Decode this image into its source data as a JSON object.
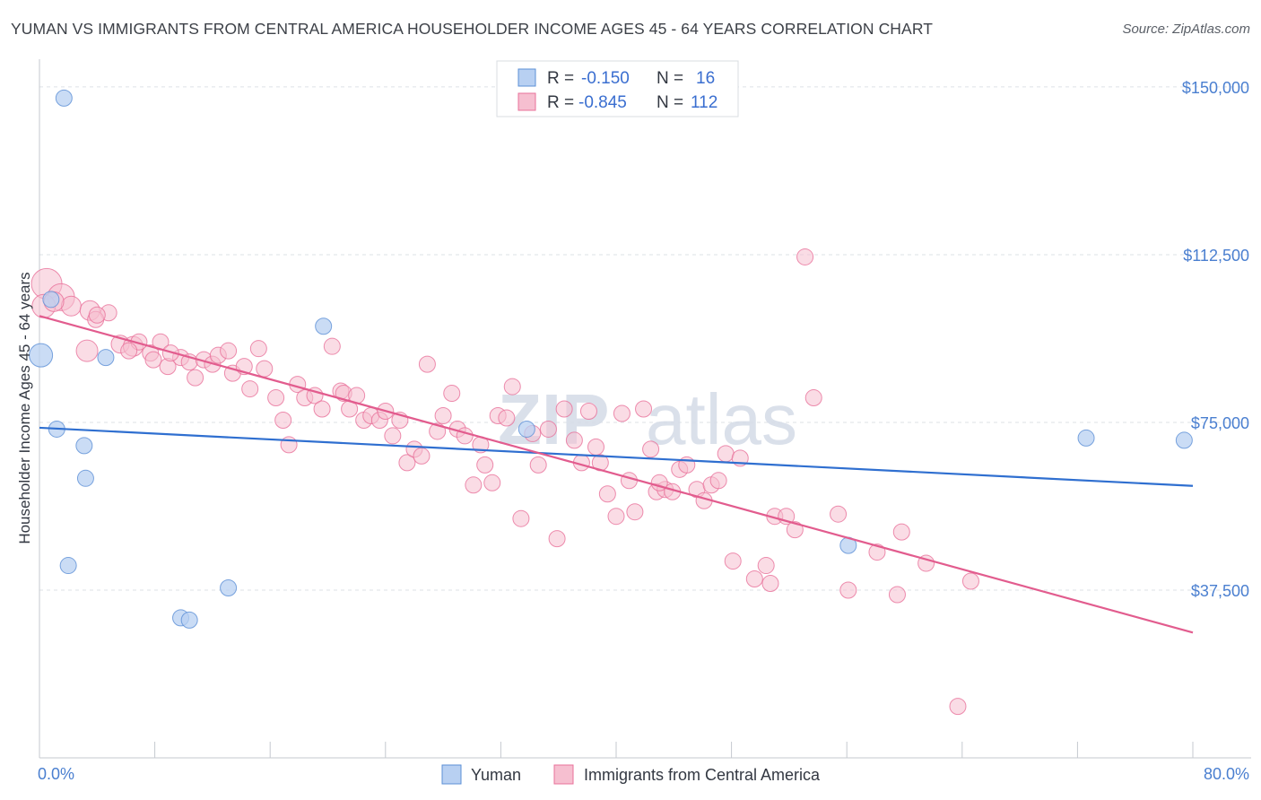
{
  "title": "YUMAN VS IMMIGRANTS FROM CENTRAL AMERICA HOUSEHOLDER INCOME AGES 45 - 64 YEARS CORRELATION CHART",
  "source": "Source: ZipAtlas.com",
  "watermark": {
    "zip": "ZIP",
    "atlas": "atlas"
  },
  "colors": {
    "blue": "#5b8fd6",
    "blue_fill": "#b8d0f2",
    "pink": "#e8709a",
    "pink_fill": "#f6bfd0",
    "axis_label": "#4a7fd0"
  },
  "legend": {
    "r_label": "R =",
    "n_label": "N =",
    "items": [
      {
        "r": "-0.150",
        "n": "16"
      },
      {
        "r": "-0.845",
        "n": "112"
      }
    ]
  },
  "bottom_legend": [
    "Yuman",
    "Immigrants from Central America"
  ],
  "chart_data": {
    "type": "scatter",
    "title": "YUMAN VS IMMIGRANTS FROM CENTRAL AMERICA HOUSEHOLDER INCOME AGES 45 - 64 YEARS CORRELATION CHART",
    "xlabel": "",
    "ylabel": "Householder Income Ages 45 - 64 years",
    "xlim": [
      0,
      80
    ],
    "ylim": [
      0,
      155000
    ],
    "x_tick_labels": [
      "0.0%",
      "80.0%"
    ],
    "y_tick_labels": [
      "$37,500",
      "$75,000",
      "$112,500",
      "$150,000"
    ],
    "y_ticks": [
      37500,
      75000,
      112500,
      150000
    ],
    "grid": true,
    "legend_position": "top-center",
    "series": [
      {
        "name": "Yuman",
        "color": "#5b8fd6",
        "trend": {
          "x": [
            0,
            80
          ],
          "y": [
            73800,
            60800
          ]
        },
        "points": [
          [
            1.7,
            147500,
            9
          ],
          [
            0.8,
            102500,
            9
          ],
          [
            0.1,
            90000,
            13
          ],
          [
            4.6,
            89500,
            9
          ],
          [
            19.7,
            96500,
            9
          ],
          [
            1.2,
            73500,
            9
          ],
          [
            3.1,
            69800,
            9
          ],
          [
            3.2,
            62500,
            9
          ],
          [
            2.0,
            43000,
            9
          ],
          [
            13.1,
            38000,
            9
          ],
          [
            9.8,
            31300,
            9
          ],
          [
            10.4,
            30800,
            9
          ],
          [
            33.8,
            73500,
            9
          ],
          [
            56.1,
            47500,
            9
          ],
          [
            72.6,
            71500,
            9
          ],
          [
            79.4,
            71000,
            9
          ]
        ]
      },
      {
        "name": "Immigrants from Central America",
        "color": "#e8709a",
        "trend": {
          "x": [
            0,
            80
          ],
          "y": [
            98800,
            28000
          ]
        },
        "points": [
          [
            0.5,
            106000,
            17
          ],
          [
            1.5,
            103000,
            15
          ],
          [
            0.3,
            101000,
            13
          ],
          [
            2.2,
            101000,
            11
          ],
          [
            1.0,
            102000,
            11
          ],
          [
            3.5,
            100000,
            11
          ],
          [
            4.8,
            99500,
            9
          ],
          [
            3.9,
            98000,
            9
          ],
          [
            4.0,
            99000,
            9
          ],
          [
            3.3,
            91000,
            12
          ],
          [
            5.6,
            92500,
            10
          ],
          [
            6.5,
            92000,
            11
          ],
          [
            6.9,
            93000,
            9
          ],
          [
            6.2,
            91000,
            9
          ],
          [
            7.7,
            90500,
            9
          ],
          [
            8.4,
            93000,
            9
          ],
          [
            7.9,
            89000,
            9
          ],
          [
            8.9,
            87500,
            9
          ],
          [
            9.8,
            89500,
            9
          ],
          [
            9.1,
            90500,
            9
          ],
          [
            10.4,
            88500,
            9
          ],
          [
            10.8,
            85000,
            9
          ],
          [
            11.4,
            89000,
            9
          ],
          [
            12.0,
            88000,
            9
          ],
          [
            12.4,
            90000,
            9
          ],
          [
            13.1,
            91000,
            9
          ],
          [
            13.4,
            86000,
            9
          ],
          [
            14.2,
            87500,
            9
          ],
          [
            14.6,
            82500,
            9
          ],
          [
            15.2,
            91500,
            9
          ],
          [
            15.6,
            87000,
            9
          ],
          [
            16.4,
            80500,
            9
          ],
          [
            16.9,
            75500,
            9
          ],
          [
            17.3,
            70000,
            9
          ],
          [
            17.9,
            83500,
            9
          ],
          [
            18.4,
            80500,
            9
          ],
          [
            19.1,
            81000,
            9
          ],
          [
            19.6,
            78000,
            9
          ],
          [
            20.3,
            92000,
            9
          ],
          [
            20.9,
            82000,
            9
          ],
          [
            21.5,
            78000,
            9
          ],
          [
            21.1,
            81500,
            9
          ],
          [
            22.0,
            81000,
            9
          ],
          [
            22.5,
            75500,
            9
          ],
          [
            23.0,
            76500,
            9
          ],
          [
            23.6,
            75500,
            9
          ],
          [
            24.0,
            77500,
            9
          ],
          [
            24.5,
            72000,
            9
          ],
          [
            25.0,
            75500,
            9
          ],
          [
            25.5,
            66000,
            9
          ],
          [
            26.0,
            69000,
            9
          ],
          [
            26.5,
            67500,
            9
          ],
          [
            26.9,
            88000,
            9
          ],
          [
            27.6,
            73000,
            9
          ],
          [
            28.0,
            76500,
            9
          ],
          [
            28.6,
            81500,
            9
          ],
          [
            29.0,
            73500,
            9
          ],
          [
            29.5,
            72000,
            9
          ],
          [
            30.1,
            61000,
            9
          ],
          [
            30.6,
            70000,
            9
          ],
          [
            30.9,
            65500,
            9
          ],
          [
            31.4,
            61500,
            9
          ],
          [
            31.8,
            76500,
            9
          ],
          [
            32.4,
            76000,
            9
          ],
          [
            32.8,
            83000,
            9
          ],
          [
            33.4,
            53500,
            9
          ],
          [
            34.2,
            72500,
            9
          ],
          [
            34.6,
            65500,
            9
          ],
          [
            35.3,
            73500,
            9
          ],
          [
            35.9,
            49000,
            9
          ],
          [
            36.4,
            78000,
            9
          ],
          [
            37.1,
            71000,
            9
          ],
          [
            37.6,
            66000,
            9
          ],
          [
            38.1,
            77500,
            9
          ],
          [
            38.6,
            69500,
            9
          ],
          [
            38.9,
            66000,
            9
          ],
          [
            39.4,
            59000,
            9
          ],
          [
            40.0,
            54000,
            9
          ],
          [
            40.4,
            77000,
            9
          ],
          [
            40.9,
            62000,
            9
          ],
          [
            41.3,
            55000,
            9
          ],
          [
            41.9,
            78000,
            9
          ],
          [
            42.4,
            69000,
            9
          ],
          [
            42.8,
            59500,
            9
          ],
          [
            43.4,
            60000,
            9
          ],
          [
            43.9,
            59500,
            9
          ],
          [
            44.4,
            64500,
            9
          ],
          [
            44.9,
            65500,
            9
          ],
          [
            45.6,
            60000,
            9
          ],
          [
            46.1,
            57500,
            9
          ],
          [
            46.6,
            61000,
            9
          ],
          [
            47.1,
            62000,
            9
          ],
          [
            47.6,
            68000,
            9
          ],
          [
            48.1,
            44000,
            9
          ],
          [
            48.6,
            67000,
            9
          ],
          [
            49.6,
            40000,
            9
          ],
          [
            50.4,
            43000,
            9
          ],
          [
            50.7,
            39000,
            9
          ],
          [
            51.0,
            54000,
            9
          ],
          [
            51.8,
            54000,
            9
          ],
          [
            52.4,
            51000,
            9
          ],
          [
            53.7,
            80500,
            9
          ],
          [
            53.1,
            112000,
            9
          ],
          [
            55.4,
            54500,
            9
          ],
          [
            56.1,
            37500,
            9
          ],
          [
            58.1,
            46000,
            9
          ],
          [
            59.5,
            36500,
            9
          ],
          [
            59.8,
            50500,
            9
          ],
          [
            61.5,
            43500,
            9
          ],
          [
            64.6,
            39500,
            9
          ],
          [
            63.7,
            11500,
            9
          ],
          [
            43.0,
            61500,
            9
          ]
        ]
      }
    ]
  }
}
